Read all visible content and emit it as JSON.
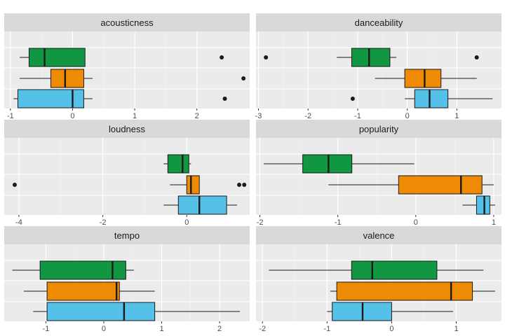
{
  "chart_data": {
    "type": "boxplot",
    "facet_layout": "3 rows x 2 columns",
    "grid": true,
    "legend": "none",
    "colors": {
      "series_top": "#119641",
      "series_middle": "#ee8a04",
      "series_bottom": "#55c1e8",
      "panel_background": "#ebebeb",
      "strip_background": "#d9d9d9",
      "grid_major": "#ffffff"
    },
    "panels": [
      {
        "title": "acousticness",
        "xlim": [
          -1.1,
          2.85
        ],
        "xticks": [
          -1,
          0,
          1,
          2
        ],
        "tick_labels": [
          "-1",
          "0",
          "1",
          "2"
        ],
        "boxes": [
          {
            "min": -0.85,
            "q1": -0.7,
            "median": -0.45,
            "q3": 0.2,
            "max": 0.2,
            "outliers": [
              2.4
            ]
          },
          {
            "min": -0.85,
            "q1": -0.35,
            "median": -0.12,
            "q3": 0.18,
            "max": 0.32,
            "outliers": [
              2.75
            ]
          },
          {
            "min": -0.95,
            "q1": -0.88,
            "median": 0.0,
            "q3": 0.18,
            "max": 0.32,
            "outliers": [
              2.45
            ]
          }
        ]
      },
      {
        "title": "danceability",
        "xlim": [
          -3.05,
          1.9
        ],
        "xticks": [
          -3,
          -2,
          -1,
          0,
          1
        ],
        "tick_labels": [
          "-3",
          "-2",
          "-1",
          "0",
          "1"
        ],
        "boxes": [
          {
            "min": -1.42,
            "q1": -1.12,
            "median": -0.77,
            "q3": -0.35,
            "max": -0.22,
            "outliers": [
              -2.85,
              1.4
            ]
          },
          {
            "min": -0.65,
            "q1": -0.05,
            "median": 0.35,
            "q3": 0.68,
            "max": 1.4,
            "outliers": []
          },
          {
            "min": -0.05,
            "q1": 0.15,
            "median": 0.45,
            "q3": 0.82,
            "max": 1.72,
            "outliers": [
              -1.1
            ]
          }
        ]
      },
      {
        "title": "loudness",
        "xlim": [
          -4.35,
          1.5
        ],
        "xticks": [
          -4,
          -2,
          0
        ],
        "tick_labels": [
          "-4",
          "-2",
          "0"
        ],
        "boxes": [
          {
            "min": -0.55,
            "q1": -0.45,
            "median": -0.1,
            "q3": 0.05,
            "max": 0.1,
            "outliers": []
          },
          {
            "min": -0.4,
            "q1": 0.0,
            "median": 0.1,
            "q3": 0.3,
            "max": 0.3,
            "outliers": [
              -4.1,
              1.25,
              1.37
            ]
          },
          {
            "min": -0.55,
            "q1": -0.2,
            "median": 0.3,
            "q3": 0.95,
            "max": 1.2,
            "outliers": []
          }
        ]
      },
      {
        "title": "popularity",
        "xlim": [
          -2.05,
          1.1
        ],
        "xticks": [
          -2,
          -1,
          0,
          1
        ],
        "tick_labels": [
          "-2",
          "-1",
          "0",
          "1"
        ],
        "boxes": [
          {
            "min": -1.95,
            "q1": -1.45,
            "median": -1.12,
            "q3": -0.82,
            "max": -0.02,
            "outliers": []
          },
          {
            "min": -1.12,
            "q1": -0.22,
            "median": 0.58,
            "q3": 0.85,
            "max": 1.0,
            "outliers": []
          },
          {
            "min": 0.6,
            "q1": 0.78,
            "median": 0.88,
            "q3": 0.95,
            "max": 1.02,
            "outliers": []
          }
        ]
      },
      {
        "title": "tempo",
        "xlim": [
          -1.72,
          2.52
        ],
        "xticks": [
          -1,
          0,
          1,
          2
        ],
        "tick_labels": [
          "-1",
          "0",
          "1",
          "2"
        ],
        "boxes": [
          {
            "min": -1.58,
            "q1": -1.1,
            "median": 0.15,
            "q3": 0.38,
            "max": 0.52,
            "outliers": []
          },
          {
            "min": -1.38,
            "q1": -0.98,
            "median": 0.22,
            "q3": 0.27,
            "max": 0.88,
            "outliers": []
          },
          {
            "min": -1.22,
            "q1": -0.98,
            "median": 0.35,
            "q3": 0.88,
            "max": 2.35,
            "outliers": []
          }
        ]
      },
      {
        "title": "valence",
        "xlim": [
          -2.1,
          1.7
        ],
        "xticks": [
          -2,
          -1,
          0,
          1
        ],
        "tick_labels": [
          "-2",
          "-1",
          "0",
          "1"
        ],
        "boxes": [
          {
            "min": -1.9,
            "q1": -0.62,
            "median": -0.3,
            "q3": 0.7,
            "max": 1.42,
            "outliers": []
          },
          {
            "min": -0.95,
            "q1": -0.85,
            "median": 0.92,
            "q3": 1.25,
            "max": 1.6,
            "outliers": []
          },
          {
            "min": -1.0,
            "q1": -0.92,
            "median": -0.45,
            "q3": 0.0,
            "max": 0.95,
            "outliers": []
          }
        ]
      }
    ]
  }
}
